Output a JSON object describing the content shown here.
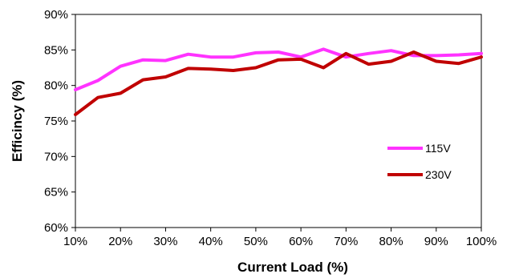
{
  "chart_data": {
    "type": "line",
    "title": "",
    "xlabel": "Current Load (%)",
    "ylabel": "Efficincy (%)",
    "xlim": [
      10,
      100
    ],
    "ylim": [
      60,
      90
    ],
    "x_ticks": [
      "10%",
      "20%",
      "30%",
      "40%",
      "50%",
      "60%",
      "70%",
      "80%",
      "90%",
      "100%"
    ],
    "y_ticks": [
      "60%",
      "65%",
      "70%",
      "75%",
      "80%",
      "85%",
      "90%"
    ],
    "grid": false,
    "legend_position": "right",
    "x": [
      10,
      15,
      20,
      25,
      30,
      35,
      40,
      45,
      50,
      55,
      60,
      65,
      70,
      75,
      80,
      85,
      90,
      95,
      100
    ],
    "series": [
      {
        "name": "115V",
        "color": "#ff33ff",
        "values": [
          79.4,
          80.7,
          82.7,
          83.6,
          83.5,
          84.4,
          84.0,
          84.0,
          84.6,
          84.7,
          84.0,
          85.1,
          84.0,
          84.5,
          84.9,
          84.2,
          84.2,
          84.3,
          84.5
        ]
      },
      {
        "name": "230V",
        "color": "#c00000",
        "values": [
          75.9,
          78.3,
          78.9,
          80.8,
          81.2,
          82.4,
          82.3,
          82.1,
          82.5,
          83.6,
          83.7,
          82.5,
          84.5,
          83.0,
          83.4,
          84.7,
          83.4,
          83.1,
          84.0
        ]
      }
    ]
  }
}
